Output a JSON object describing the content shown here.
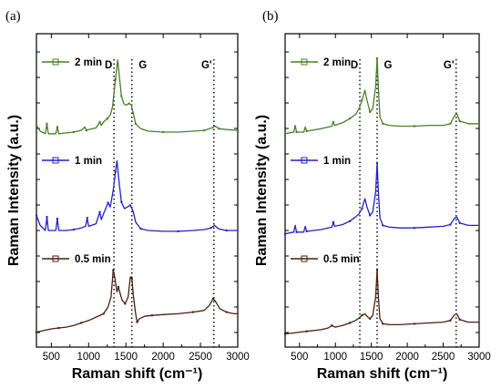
{
  "chart_data": [
    {
      "type": "line",
      "panel_label": "(a)",
      "xlabel": "Raman shift (cm⁻¹)",
      "ylabel": "Raman Intensity (a.u.)",
      "xlim": [
        300,
        3000
      ],
      "xticks": [
        "500",
        "1000",
        "1500",
        "2000",
        "2500",
        "3000"
      ],
      "bands": [
        {
          "label": "D",
          "x": 1340
        },
        {
          "label": "G",
          "x": 1580
        },
        {
          "label": "G'",
          "x": 2680
        }
      ],
      "series": [
        {
          "name": "2 min",
          "color": "#4a7f2a",
          "offset": 2,
          "points": [
            [
              300,
              0.2
            ],
            [
              350,
              0.13
            ],
            [
              420,
              0.1
            ],
            [
              440,
              0.22
            ],
            [
              460,
              0.1
            ],
            [
              560,
              0.1
            ],
            [
              580,
              0.18
            ],
            [
              600,
              0.1
            ],
            [
              700,
              0.11
            ],
            [
              800,
              0.12
            ],
            [
              900,
              0.14
            ],
            [
              950,
              0.18
            ],
            [
              970,
              0.14
            ],
            [
              1000,
              0.15
            ],
            [
              1100,
              0.17
            ],
            [
              1150,
              0.24
            ],
            [
              1170,
              0.2
            ],
            [
              1200,
              0.24
            ],
            [
              1250,
              0.28
            ],
            [
              1290,
              0.32
            ],
            [
              1320,
              0.42
            ],
            [
              1360,
              0.75
            ],
            [
              1390,
              0.98
            ],
            [
              1410,
              0.8
            ],
            [
              1440,
              0.55
            ],
            [
              1470,
              0.46
            ],
            [
              1500,
              0.44
            ],
            [
              1540,
              0.46
            ],
            [
              1570,
              0.45
            ],
            [
              1600,
              0.34
            ],
            [
              1630,
              0.22
            ],
            [
              1700,
              0.16
            ],
            [
              1800,
              0.13
            ],
            [
              2000,
              0.12
            ],
            [
              2200,
              0.12
            ],
            [
              2400,
              0.13
            ],
            [
              2550,
              0.14
            ],
            [
              2650,
              0.17
            ],
            [
              2700,
              0.19
            ],
            [
              2750,
              0.16
            ],
            [
              2850,
              0.15
            ],
            [
              3000,
              0.14
            ]
          ]
        },
        {
          "name": "1 min",
          "color": "#2222c8",
          "offset": 1,
          "points": [
            [
              300,
              0.3
            ],
            [
              350,
              0.18
            ],
            [
              420,
              0.12
            ],
            [
              440,
              0.28
            ],
            [
              460,
              0.12
            ],
            [
              560,
              0.12
            ],
            [
              580,
              0.26
            ],
            [
              600,
              0.12
            ],
            [
              700,
              0.12
            ],
            [
              800,
              0.13
            ],
            [
              900,
              0.15
            ],
            [
              960,
              0.17
            ],
            [
              980,
              0.27
            ],
            [
              1000,
              0.17
            ],
            [
              1100,
              0.2
            ],
            [
              1150,
              0.34
            ],
            [
              1170,
              0.25
            ],
            [
              1200,
              0.32
            ],
            [
              1260,
              0.45
            ],
            [
              1290,
              0.4
            ],
            [
              1330,
              0.6
            ],
            [
              1360,
              0.82
            ],
            [
              1380,
              0.95
            ],
            [
              1410,
              0.68
            ],
            [
              1440,
              0.46
            ],
            [
              1480,
              0.38
            ],
            [
              1520,
              0.4
            ],
            [
              1560,
              0.42
            ],
            [
              1600,
              0.34
            ],
            [
              1630,
              0.22
            ],
            [
              1700,
              0.14
            ],
            [
              1800,
              0.12
            ],
            [
              2000,
              0.11
            ],
            [
              2200,
              0.11
            ],
            [
              2400,
              0.12
            ],
            [
              2550,
              0.13
            ],
            [
              2640,
              0.15
            ],
            [
              2690,
              0.18
            ],
            [
              2740,
              0.14
            ],
            [
              2850,
              0.12
            ],
            [
              3000,
              0.12
            ]
          ]
        },
        {
          "name": "0.5 min",
          "color": "#4a1f0e",
          "offset": 0,
          "points": [
            [
              300,
              0.08
            ],
            [
              400,
              0.1
            ],
            [
              500,
              0.12
            ],
            [
              600,
              0.13
            ],
            [
              700,
              0.14
            ],
            [
              800,
              0.16
            ],
            [
              900,
              0.19
            ],
            [
              1000,
              0.22
            ],
            [
              1100,
              0.26
            ],
            [
              1200,
              0.3
            ],
            [
              1260,
              0.38
            ],
            [
              1300,
              0.5
            ],
            [
              1330,
              0.82
            ],
            [
              1350,
              0.74
            ],
            [
              1380,
              0.56
            ],
            [
              1400,
              0.62
            ],
            [
              1420,
              0.55
            ],
            [
              1450,
              0.46
            ],
            [
              1490,
              0.42
            ],
            [
              1530,
              0.5
            ],
            [
              1560,
              0.74
            ],
            [
              1580,
              0.72
            ],
            [
              1600,
              0.52
            ],
            [
              1630,
              0.3
            ],
            [
              1650,
              0.2
            ],
            [
              1680,
              0.24
            ],
            [
              1750,
              0.27
            ],
            [
              1850,
              0.28
            ],
            [
              2000,
              0.29
            ],
            [
              2200,
              0.3
            ],
            [
              2400,
              0.32
            ],
            [
              2550,
              0.34
            ],
            [
              2620,
              0.4
            ],
            [
              2670,
              0.48
            ],
            [
              2700,
              0.45
            ],
            [
              2760,
              0.36
            ],
            [
              2850,
              0.32
            ],
            [
              2950,
              0.3
            ],
            [
              3000,
              0.3
            ]
          ]
        }
      ]
    },
    {
      "type": "line",
      "panel_label": "(b)",
      "xlabel": "Raman shift (cm⁻¹)",
      "ylabel": "Raman Intensity (a.u.)",
      "xlim": [
        300,
        3000
      ],
      "xticks": [
        "500",
        "1000",
        "1500",
        "2000",
        "2500",
        "3000"
      ],
      "bands": [
        {
          "label": "D",
          "x": 1340
        },
        {
          "label": "G",
          "x": 1580
        },
        {
          "label": "G'",
          "x": 2680
        }
      ],
      "series": [
        {
          "name": "2 min",
          "color": "#4a7f2a",
          "offset": 2,
          "points": [
            [
              300,
              0.1
            ],
            [
              420,
              0.12
            ],
            [
              440,
              0.2
            ],
            [
              460,
              0.12
            ],
            [
              560,
              0.12
            ],
            [
              580,
              0.18
            ],
            [
              600,
              0.13
            ],
            [
              800,
              0.16
            ],
            [
              950,
              0.19
            ],
            [
              970,
              0.24
            ],
            [
              990,
              0.2
            ],
            [
              1100,
              0.23
            ],
            [
              1200,
              0.28
            ],
            [
              1280,
              0.33
            ],
            [
              1330,
              0.4
            ],
            [
              1370,
              0.5
            ],
            [
              1410,
              0.62
            ],
            [
              1440,
              0.5
            ],
            [
              1480,
              0.36
            ],
            [
              1520,
              0.4
            ],
            [
              1560,
              0.66
            ],
            [
              1580,
              1.0
            ],
            [
              1600,
              0.6
            ],
            [
              1620,
              0.3
            ],
            [
              1660,
              0.22
            ],
            [
              1750,
              0.2
            ],
            [
              1900,
              0.19
            ],
            [
              2100,
              0.19
            ],
            [
              2300,
              0.2
            ],
            [
              2500,
              0.2
            ],
            [
              2600,
              0.22
            ],
            [
              2660,
              0.32
            ],
            [
              2690,
              0.34
            ],
            [
              2730,
              0.25
            ],
            [
              2850,
              0.22
            ],
            [
              3000,
              0.22
            ]
          ]
        },
        {
          "name": "1 min",
          "color": "#2222c8",
          "offset": 1,
          "points": [
            [
              300,
              0.08
            ],
            [
              420,
              0.1
            ],
            [
              440,
              0.18
            ],
            [
              460,
              0.1
            ],
            [
              560,
              0.1
            ],
            [
              580,
              0.17
            ],
            [
              600,
              0.11
            ],
            [
              800,
              0.13
            ],
            [
              950,
              0.16
            ],
            [
              970,
              0.22
            ],
            [
              990,
              0.17
            ],
            [
              1100,
              0.19
            ],
            [
              1200,
              0.23
            ],
            [
              1280,
              0.28
            ],
            [
              1330,
              0.32
            ],
            [
              1370,
              0.38
            ],
            [
              1410,
              0.5
            ],
            [
              1440,
              0.4
            ],
            [
              1480,
              0.3
            ],
            [
              1520,
              0.34
            ],
            [
              1560,
              0.58
            ],
            [
              1580,
              0.92
            ],
            [
              1600,
              0.54
            ],
            [
              1620,
              0.27
            ],
            [
              1660,
              0.18
            ],
            [
              1750,
              0.16
            ],
            [
              1900,
              0.15
            ],
            [
              2100,
              0.15
            ],
            [
              2300,
              0.16
            ],
            [
              2500,
              0.17
            ],
            [
              2600,
              0.19
            ],
            [
              2660,
              0.27
            ],
            [
              2690,
              0.28
            ],
            [
              2730,
              0.21
            ],
            [
              2850,
              0.18
            ],
            [
              3000,
              0.18
            ]
          ]
        },
        {
          "name": "0.5 min",
          "color": "#4a1f0e",
          "offset": 0,
          "points": [
            [
              300,
              0.06
            ],
            [
              400,
              0.07
            ],
            [
              500,
              0.08
            ],
            [
              600,
              0.09
            ],
            [
              800,
              0.11
            ],
            [
              900,
              0.13
            ],
            [
              950,
              0.16
            ],
            [
              1000,
              0.14
            ],
            [
              1100,
              0.16
            ],
            [
              1200,
              0.19
            ],
            [
              1280,
              0.22
            ],
            [
              1330,
              0.25
            ],
            [
              1370,
              0.28
            ],
            [
              1410,
              0.3
            ],
            [
              1440,
              0.27
            ],
            [
              1480,
              0.24
            ],
            [
              1520,
              0.28
            ],
            [
              1560,
              0.5
            ],
            [
              1580,
              0.82
            ],
            [
              1600,
              0.46
            ],
            [
              1620,
              0.24
            ],
            [
              1660,
              0.18
            ],
            [
              1750,
              0.17
            ],
            [
              1900,
              0.17
            ],
            [
              2100,
              0.18
            ],
            [
              2300,
              0.19
            ],
            [
              2500,
              0.2
            ],
            [
              2600,
              0.22
            ],
            [
              2660,
              0.29
            ],
            [
              2690,
              0.3
            ],
            [
              2730,
              0.23
            ],
            [
              2850,
              0.2
            ],
            [
              3000,
              0.2
            ]
          ]
        }
      ]
    }
  ]
}
